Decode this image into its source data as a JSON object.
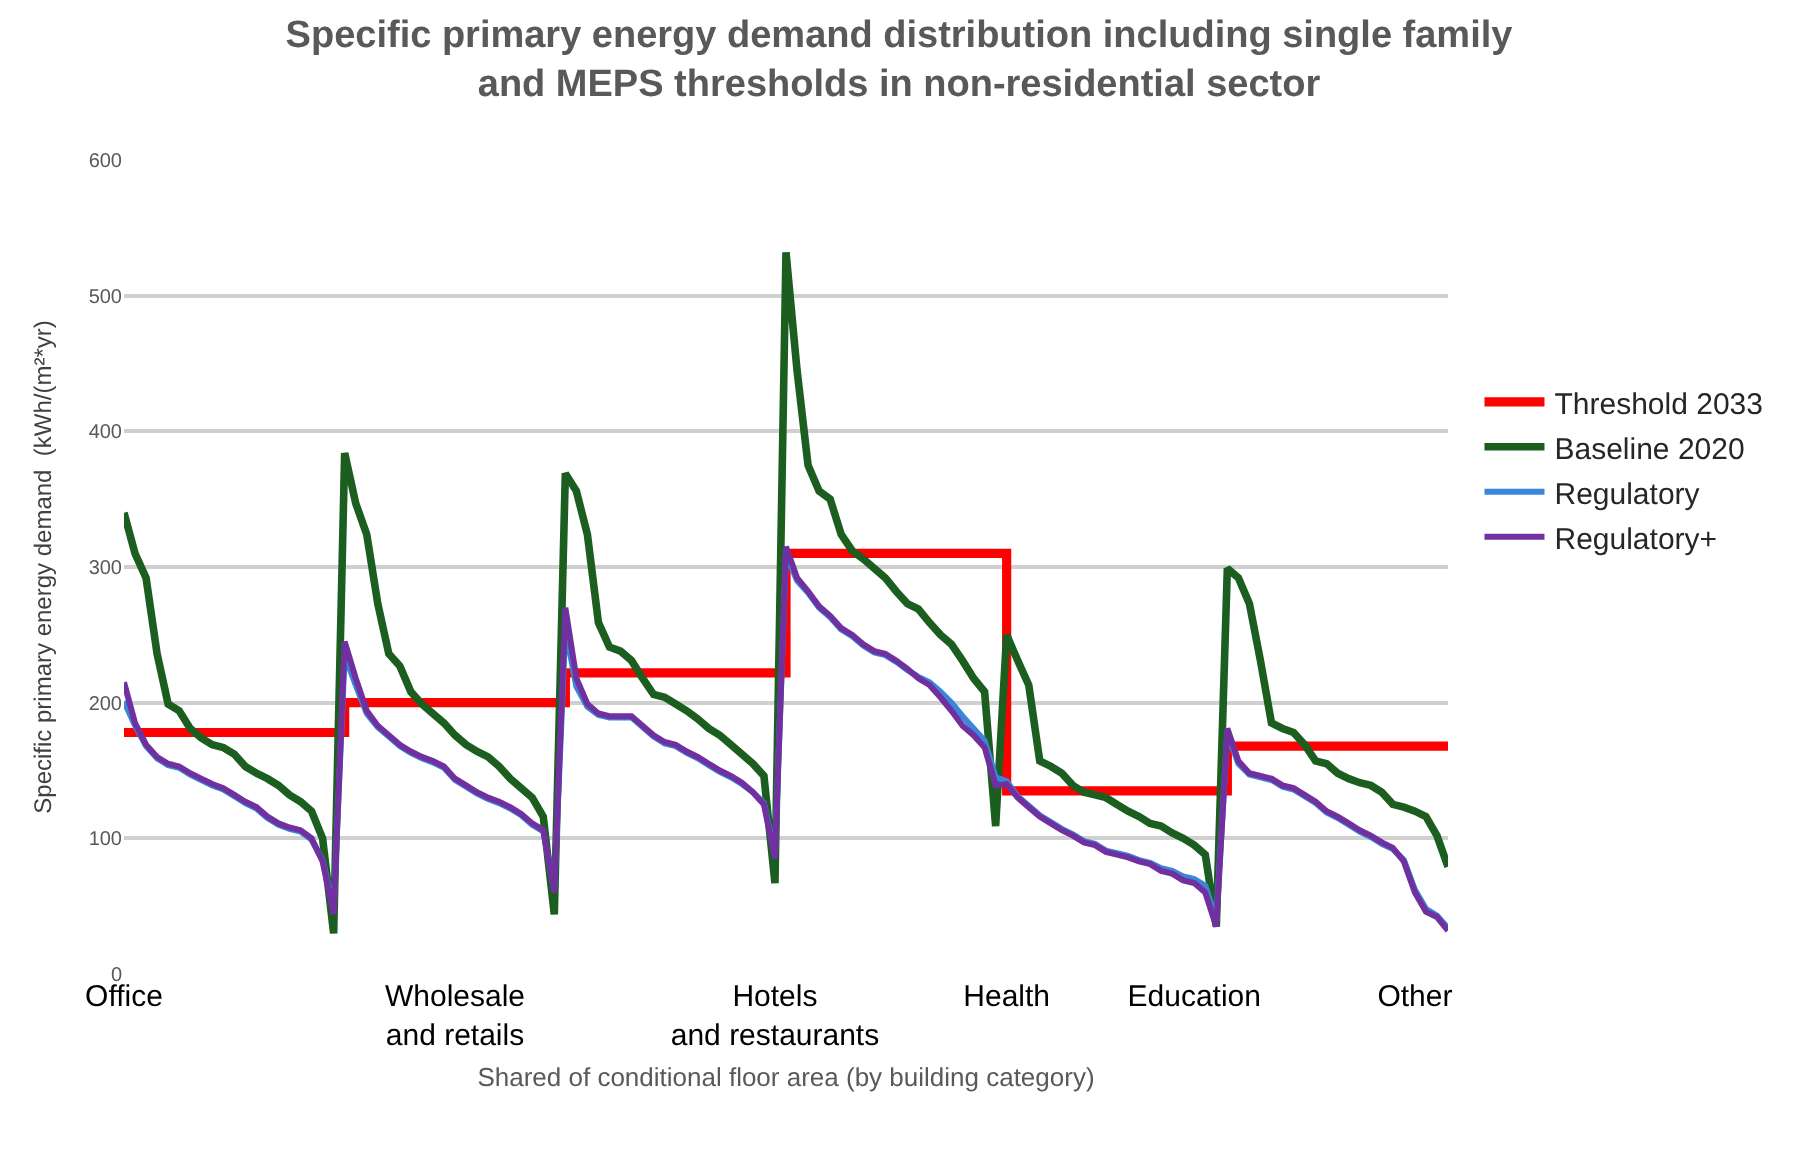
{
  "chart_data": {
    "type": "line",
    "title": "Specific primary energy demand distribution including single family\nand MEPS thresholds in non-residential sector",
    "xlabel": "Shared of conditional floor area (by building category)",
    "ylabel": "Specific primary energy demand  (kWh/(m²*yr)",
    "categories": [
      "Office",
      null,
      null,
      null,
      null,
      null,
      null,
      null,
      null,
      null,
      null,
      null,
      null,
      null,
      null,
      null,
      null,
      null,
      null,
      null,
      null,
      null,
      null,
      null,
      null,
      null,
      null,
      null,
      null,
      null,
      "Wholesale\nand retails",
      null,
      null,
      null,
      null,
      null,
      null,
      null,
      null,
      null,
      null,
      null,
      null,
      null,
      null,
      null,
      null,
      null,
      null,
      null,
      null,
      null,
      null,
      null,
      null,
      null,
      null,
      null,
      null,
      "Hotels\nand restaurants",
      null,
      null,
      null,
      null,
      null,
      null,
      null,
      null,
      null,
      null,
      null,
      null,
      null,
      null,
      null,
      null,
      null,
      null,
      null,
      null,
      "Health",
      null,
      null,
      null,
      null,
      null,
      null,
      null,
      null,
      null,
      null,
      null,
      null,
      null,
      null,
      null,
      null,
      "Education",
      null,
      null,
      null,
      null,
      null,
      null,
      null,
      null,
      null,
      null,
      null,
      null,
      null,
      null,
      null,
      null,
      null,
      null,
      null,
      "Other",
      null,
      null,
      null
    ],
    "series": [
      {
        "name": "Threshold 2033",
        "type": "step",
        "color": "#ff0000",
        "values": [
          178,
          178,
          178,
          178,
          178,
          178,
          178,
          178,
          178,
          178,
          178,
          178,
          178,
          178,
          178,
          178,
          178,
          178,
          178,
          178,
          200,
          200,
          200,
          200,
          200,
          200,
          200,
          200,
          200,
          200,
          200,
          200,
          200,
          200,
          200,
          200,
          200,
          200,
          200,
          200,
          222,
          222,
          222,
          222,
          222,
          222,
          222,
          222,
          222,
          222,
          222,
          222,
          222,
          222,
          222,
          222,
          222,
          222,
          222,
          222,
          310,
          310,
          310,
          310,
          310,
          310,
          310,
          310,
          310,
          310,
          310,
          310,
          310,
          310,
          310,
          310,
          310,
          310,
          310,
          310,
          135,
          135,
          135,
          135,
          135,
          135,
          135,
          135,
          135,
          135,
          135,
          135,
          135,
          135,
          135,
          135,
          135,
          135,
          135,
          135,
          168,
          168,
          168,
          168,
          168,
          168,
          168,
          168,
          168,
          168,
          168,
          168,
          168,
          168,
          168,
          168,
          168,
          168,
          168,
          168,
          168
        ]
      },
      {
        "name": "Baseline 2020",
        "color": "#1b5e20",
        "values": [
          340,
          310,
          292,
          236,
          199,
          194,
          181,
          174,
          169,
          167,
          162,
          153,
          148,
          144,
          139,
          132,
          127,
          120,
          100,
          30,
          384,
          347,
          324,
          273,
          236,
          227,
          208,
          199,
          192,
          185,
          176,
          169,
          164,
          160,
          153,
          144,
          137,
          130,
          116,
          44,
          369,
          356,
          324,
          259,
          241,
          238,
          231,
          218,
          206,
          204,
          199,
          194,
          188,
          181,
          176,
          169,
          162,
          155,
          146,
          67,
          532,
          445,
          375,
          356,
          350,
          324,
          312,
          306,
          299,
          292,
          282,
          273,
          269,
          259,
          250,
          243,
          231,
          218,
          208,
          109,
          250,
          231,
          213,
          157,
          153,
          148,
          139,
          134,
          132,
          130,
          125,
          120,
          116,
          111,
          109,
          104,
          100,
          95,
          88,
          35,
          299,
          292,
          273,
          231,
          185,
          181,
          178,
          169,
          157,
          155,
          148,
          144,
          141,
          139,
          134,
          125,
          123,
          120,
          116,
          102,
          79
        ]
      },
      {
        "name": "Regulatory",
        "color": "#3a86d8",
        "values": [
          201,
          183,
          168,
          159,
          154,
          152,
          147,
          143,
          139,
          136,
          131,
          126,
          122,
          115,
          110,
          107,
          105,
          99,
          84,
          48,
          235,
          213,
          192,
          182,
          175,
          168,
          163,
          159,
          156,
          152,
          143,
          138,
          133,
          129,
          126,
          122,
          117,
          110,
          105,
          62,
          255,
          212,
          197,
          191,
          189,
          189,
          189,
          182,
          175,
          170,
          168,
          163,
          159,
          154,
          149,
          145,
          140,
          134,
          126,
          88,
          310,
          290,
          281,
          270,
          263,
          254,
          249,
          242,
          237,
          235,
          230,
          224,
          219,
          215,
          208,
          200,
          190,
          181,
          172,
          145,
          142,
          131,
          124,
          117,
          112,
          107,
          103,
          98,
          96,
          91,
          89,
          87,
          84,
          82,
          78,
          76,
          72,
          70,
          65,
          40,
          178,
          155,
          147,
          145,
          143,
          138,
          136,
          131,
          126,
          119,
          115,
          110,
          105,
          101,
          96,
          92,
          84,
          62,
          48,
          43,
          34
        ]
      },
      {
        "name": "Regulatory+",
        "color": "#7030a0",
        "values": [
          215,
          185,
          169,
          160,
          155,
          153,
          148,
          144,
          140,
          137,
          132,
          127,
          123,
          116,
          111,
          108,
          106,
          100,
          83,
          44,
          245,
          218,
          194,
          183,
          176,
          169,
          164,
          160,
          157,
          153,
          144,
          139,
          134,
          130,
          127,
          123,
          118,
          111,
          106,
          60,
          270,
          218,
          199,
          192,
          190,
          190,
          190,
          183,
          176,
          171,
          169,
          164,
          160,
          155,
          150,
          146,
          141,
          134,
          125,
          85,
          315,
          292,
          282,
          271,
          264,
          255,
          250,
          243,
          238,
          236,
          231,
          225,
          218,
          213,
          204,
          194,
          183,
          176,
          167,
          139,
          140,
          130,
          123,
          116,
          111,
          106,
          102,
          97,
          95,
          90,
          88,
          86,
          83,
          81,
          76,
          74,
          69,
          67,
          60,
          35,
          181,
          157,
          148,
          146,
          144,
          139,
          137,
          132,
          127,
          120,
          116,
          111,
          106,
          102,
          97,
          93,
          83,
          60,
          46,
          42,
          32
        ]
      }
    ],
    "ylim": [
      0,
      600
    ],
    "yticks": [
      0,
      100,
      200,
      300,
      400,
      500,
      600
    ],
    "grid": "y",
    "legend": "right"
  }
}
